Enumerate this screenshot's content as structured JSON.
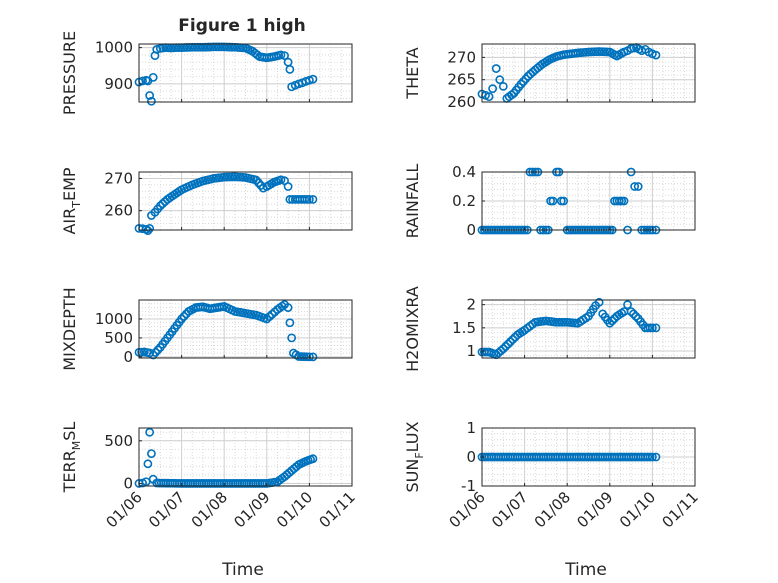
{
  "figure_title": "Figure 1 high",
  "xlabel": "Time",
  "date_ticks": [
    "01/06",
    "01/07",
    "01/08",
    "01/09",
    "01/10",
    "01/11"
  ],
  "colors": {
    "marker": "#0072BD",
    "grid": "#d9d9d9",
    "axis": "#262626"
  },
  "chart_data": [
    {
      "type": "scatter",
      "name": "pressure",
      "title": "Figure 1 high",
      "xlabel": "",
      "ylabel": "PRESSURE",
      "ylim": [
        850,
        1010
      ],
      "yticks": [
        900,
        1000
      ],
      "grid": true,
      "x_range": [
        "01/06",
        "01/11"
      ],
      "points": [
        [
          "01/06 00:00",
          905
        ],
        [
          "01/06 02:00",
          908
        ],
        [
          "01/06 04:00",
          910
        ],
        [
          "01/06 05:00",
          908
        ],
        [
          "01/06 06:00",
          868
        ],
        [
          "01/06 07:00",
          852
        ],
        [
          "01/06 08:00",
          918
        ],
        [
          "01/06 09:00",
          978
        ],
        [
          "01/06 10:00",
          995
        ],
        [
          "01/06 12:00",
          998
        ],
        [
          "01/06 15:00",
          1000
        ],
        [
          "01/06 18:00",
          999
        ],
        [
          "01/06 21:00",
          1000
        ],
        [
          "01/07 00:00",
          1000
        ],
        [
          "01/07 06:00",
          1001
        ],
        [
          "01/07 12:00",
          1001
        ],
        [
          "01/07 18:00",
          1002
        ],
        [
          "01/08 00:00",
          1002
        ],
        [
          "01/08 06:00",
          1001
        ],
        [
          "01/08 12:00",
          999
        ],
        [
          "01/08 16:00",
          990
        ],
        [
          "01/08 20:00",
          975
        ],
        [
          "01/09 00:00",
          972
        ],
        [
          "01/09 04:00",
          975
        ],
        [
          "01/09 08:00",
          980
        ],
        [
          "01/09 10:00",
          978
        ],
        [
          "01/09 12:00",
          960
        ],
        [
          "01/09 13:00",
          940
        ],
        [
          "01/09 14:00",
          892
        ],
        [
          "01/09 16:00",
          896
        ],
        [
          "01/09 18:00",
          900
        ],
        [
          "01/09 20:00",
          903
        ],
        [
          "01/09 22:00",
          907
        ],
        [
          "01/10 00:00",
          910
        ],
        [
          "01/10 02:00",
          913
        ]
      ]
    },
    {
      "type": "scatter",
      "name": "theta",
      "xlabel": "",
      "ylabel": "THETA",
      "ylim": [
        260,
        273
      ],
      "yticks": [
        260,
        265,
        270
      ],
      "grid": true,
      "x_range": [
        "01/06",
        "01/11"
      ],
      "points": [
        [
          "01/06 00:00",
          261.8
        ],
        [
          "01/06 02:00",
          261.5
        ],
        [
          "01/06 04:00",
          261.2
        ],
        [
          "01/06 06:00",
          263
        ],
        [
          "01/06 08:00",
          267.5
        ],
        [
          "01/06 10:00",
          265
        ],
        [
          "01/06 12:00",
          263.5
        ],
        [
          "01/06 14:00",
          260.8
        ],
        [
          "01/06 18:00",
          262
        ],
        [
          "01/06 22:00",
          264
        ],
        [
          "01/07 02:00",
          265.8
        ],
        [
          "01/07 06:00",
          267.2
        ],
        [
          "01/07 10:00",
          268.5
        ],
        [
          "01/07 14:00",
          269.5
        ],
        [
          "01/07 18:00",
          270.2
        ],
        [
          "01/07 22:00",
          270.6
        ],
        [
          "01/08 06:00",
          271
        ],
        [
          "01/08 12:00",
          271.2
        ],
        [
          "01/08 18:00",
          271.3
        ],
        [
          "01/09 00:00",
          271.2
        ],
        [
          "01/09 04:00",
          270.3
        ],
        [
          "01/09 08:00",
          271.2
        ],
        [
          "01/09 10:00",
          271.5
        ],
        [
          "01/09 12:00",
          272
        ],
        [
          "01/09 15:00",
          272.2
        ],
        [
          "01/09 18:00",
          271.5
        ],
        [
          "01/09 20:00",
          271.8
        ],
        [
          "01/09 22:00",
          271.2
        ],
        [
          "01/10 00:00",
          270.8
        ],
        [
          "01/10 02:00",
          270.5
        ]
      ]
    },
    {
      "type": "scatter",
      "name": "air_temp",
      "xlabel": "",
      "ylabel": "AIR_TEMP",
      "ylim": [
        254,
        272
      ],
      "yticks": [
        260,
        270
      ],
      "grid": true,
      "x_range": [
        "01/06",
        "01/11"
      ],
      "points": [
        [
          "01/06 00:00",
          254.5
        ],
        [
          "01/06 02:00",
          254.4
        ],
        [
          "01/06 04:00",
          254.2
        ],
        [
          "01/06 05:00",
          253.8
        ],
        [
          "01/06 06:00",
          254.5
        ],
        [
          "01/06 07:00",
          258.5
        ],
        [
          "01/06 09:00",
          259.5
        ],
        [
          "01/06 12:00",
          261.5
        ],
        [
          "01/06 16:00",
          263.5
        ],
        [
          "01/06 20:00",
          265
        ],
        [
          "01/07 00:00",
          266.5
        ],
        [
          "01/07 06:00",
          268
        ],
        [
          "01/07 12:00",
          269.2
        ],
        [
          "01/07 18:00",
          270
        ],
        [
          "01/08 00:00",
          270.4
        ],
        [
          "01/08 06:00",
          270.5
        ],
        [
          "01/08 12:00",
          270.3
        ],
        [
          "01/08 18:00",
          269.5
        ],
        [
          "01/08 22:00",
          267
        ],
        [
          "01/09 00:00",
          267.5
        ],
        [
          "01/09 04:00",
          268.8
        ],
        [
          "01/09 08:00",
          269.6
        ],
        [
          "01/09 10:00",
          269.3
        ],
        [
          "01/09 12:00",
          267.5
        ],
        [
          "01/09 13:00",
          263.5
        ],
        [
          "01/09 16:00",
          263.5
        ],
        [
          "01/09 20:00",
          263.5
        ],
        [
          "01/10 00:00",
          263.5
        ],
        [
          "01/10 02:00",
          263.5
        ]
      ]
    },
    {
      "type": "scatter",
      "name": "rainfall",
      "xlabel": "",
      "ylabel": "RAINFALL",
      "ylim": [
        0,
        0.4
      ],
      "yticks": [
        0,
        0.2,
        0.4
      ],
      "grid": true,
      "x_range": [
        "01/06",
        "01/11"
      ],
      "points": [
        [
          "01/06 00:00",
          0
        ],
        [
          "01/06 12:00",
          0
        ],
        [
          "01/07 00:00",
          0
        ],
        [
          "01/07 06:00",
          0.4
        ],
        [
          "01/07 12:00",
          0
        ],
        [
          "01/07 16:00",
          0.2
        ],
        [
          "01/07 18:00",
          0.4
        ],
        [
          "01/07 22:00",
          0.2
        ],
        [
          "01/08 00:00",
          0
        ],
        [
          "01/08 12:00",
          0
        ],
        [
          "01/09 00:00",
          0
        ],
        [
          "01/09 04:00",
          0.2
        ],
        [
          "01/09 08:00",
          0.2
        ],
        [
          "01/09 10:00",
          0
        ],
        [
          "01/09 12:00",
          0.4
        ],
        [
          "01/09 14:00",
          0.3
        ],
        [
          "01/09 16:00",
          0.3
        ],
        [
          "01/09 18:00",
          0
        ],
        [
          "01/10 00:00",
          0
        ],
        [
          "01/10 02:00",
          0
        ]
      ]
    },
    {
      "type": "scatter",
      "name": "mixdepth",
      "xlabel": "",
      "ylabel": "MIXDEPTH",
      "ylim": [
        -30,
        1500
      ],
      "yticks": [
        0,
        500,
        1000
      ],
      "grid": true,
      "x_range": [
        "01/06",
        "01/11"
      ],
      "points": [
        [
          "01/06 00:00",
          120
        ],
        [
          "01/06 03:00",
          130
        ],
        [
          "01/06 06:00",
          100
        ],
        [
          "01/06 08:00",
          50
        ],
        [
          "01/06 12:00",
          250
        ],
        [
          "01/06 16:00",
          500
        ],
        [
          "01/06 20:00",
          750
        ],
        [
          "01/07 00:00",
          1000
        ],
        [
          "01/07 04:00",
          1200
        ],
        [
          "01/07 08:00",
          1300
        ],
        [
          "01/07 12:00",
          1320
        ],
        [
          "01/07 16:00",
          1270
        ],
        [
          "01/07 20:00",
          1300
        ],
        [
          "01/08 00:00",
          1330
        ],
        [
          "01/08 06:00",
          1200
        ],
        [
          "01/08 12:00",
          1150
        ],
        [
          "01/08 18:00",
          1100
        ],
        [
          "01/09 00:00",
          1000
        ],
        [
          "01/09 06:00",
          1250
        ],
        [
          "01/09 10:00",
          1380
        ],
        [
          "01/09 12:00",
          1300
        ],
        [
          "01/09 13:00",
          900
        ],
        [
          "01/09 14:00",
          500
        ],
        [
          "01/09 15:00",
          100
        ],
        [
          "01/09 18:00",
          10
        ],
        [
          "01/10 00:00",
          0
        ],
        [
          "01/10 02:00",
          0
        ]
      ]
    },
    {
      "type": "scatter",
      "name": "h2omixra",
      "xlabel": "",
      "ylabel": "H2OMIXRA",
      "ylim": [
        0.85,
        2.1
      ],
      "yticks": [
        1,
        1.5,
        2
      ],
      "grid": true,
      "x_range": [
        "01/06",
        "01/11"
      ],
      "points": [
        [
          "01/06 00:00",
          0.98
        ],
        [
          "01/06 04:00",
          0.98
        ],
        [
          "01/06 08:00",
          0.92
        ],
        [
          "01/06 12:00",
          1.05
        ],
        [
          "01/06 16:00",
          1.2
        ],
        [
          "01/06 20:00",
          1.35
        ],
        [
          "01/07 00:00",
          1.45
        ],
        [
          "01/07 06:00",
          1.62
        ],
        [
          "01/07 12:00",
          1.65
        ],
        [
          "01/07 18:00",
          1.62
        ],
        [
          "01/08 00:00",
          1.62
        ],
        [
          "01/08 06:00",
          1.6
        ],
        [
          "01/08 12:00",
          1.75
        ],
        [
          "01/08 16:00",
          1.98
        ],
        [
          "01/08 18:00",
          2.05
        ],
        [
          "01/08 20:00",
          1.8
        ],
        [
          "01/09 00:00",
          1.6
        ],
        [
          "01/09 04:00",
          1.75
        ],
        [
          "01/09 08:00",
          1.85
        ],
        [
          "01/09 10:00",
          2.0
        ],
        [
          "01/09 12:00",
          1.85
        ],
        [
          "01/09 16:00",
          1.7
        ],
        [
          "01/09 20:00",
          1.5
        ],
        [
          "01/10 00:00",
          1.5
        ],
        [
          "01/10 02:00",
          1.5
        ]
      ]
    },
    {
      "type": "scatter",
      "name": "terr_msl",
      "xlabel": "",
      "ylabel": "TERR_MSL",
      "ylim": [
        -30,
        650
      ],
      "yticks": [
        0,
        500
      ],
      "grid": true,
      "x_range": [
        "01/06",
        "01/11"
      ],
      "points": [
        [
          "01/06 00:00",
          0
        ],
        [
          "01/06 02:00",
          5
        ],
        [
          "01/06 04:00",
          20
        ],
        [
          "01/06 05:00",
          230
        ],
        [
          "01/06 06:00",
          600
        ],
        [
          "01/06 07:00",
          350
        ],
        [
          "01/06 08:00",
          50
        ],
        [
          "01/06 10:00",
          5
        ],
        [
          "01/07 00:00",
          0
        ],
        [
          "01/08 00:00",
          0
        ],
        [
          "01/09 00:00",
          0
        ],
        [
          "01/09 06:00",
          20
        ],
        [
          "01/09 10:00",
          80
        ],
        [
          "01/09 14:00",
          150
        ],
        [
          "01/09 18:00",
          220
        ],
        [
          "01/09 22:00",
          260
        ],
        [
          "01/10 02:00",
          290
        ]
      ]
    },
    {
      "type": "scatter",
      "name": "sun_flux",
      "xlabel": "",
      "ylabel": "SUN_FLUX",
      "ylim": [
        -1,
        1
      ],
      "yticks": [
        -1,
        0,
        1
      ],
      "grid": true,
      "x_range": [
        "01/06",
        "01/11"
      ],
      "points": [
        [
          "01/06 00:00",
          0
        ],
        [
          "01/06 12:00",
          0
        ],
        [
          "01/07 00:00",
          0
        ],
        [
          "01/07 12:00",
          0
        ],
        [
          "01/08 00:00",
          0
        ],
        [
          "01/08 12:00",
          0
        ],
        [
          "01/09 00:00",
          0
        ],
        [
          "01/09 12:00",
          0
        ],
        [
          "01/10 00:00",
          0
        ],
        [
          "01/10 02:00",
          0
        ]
      ]
    }
  ]
}
